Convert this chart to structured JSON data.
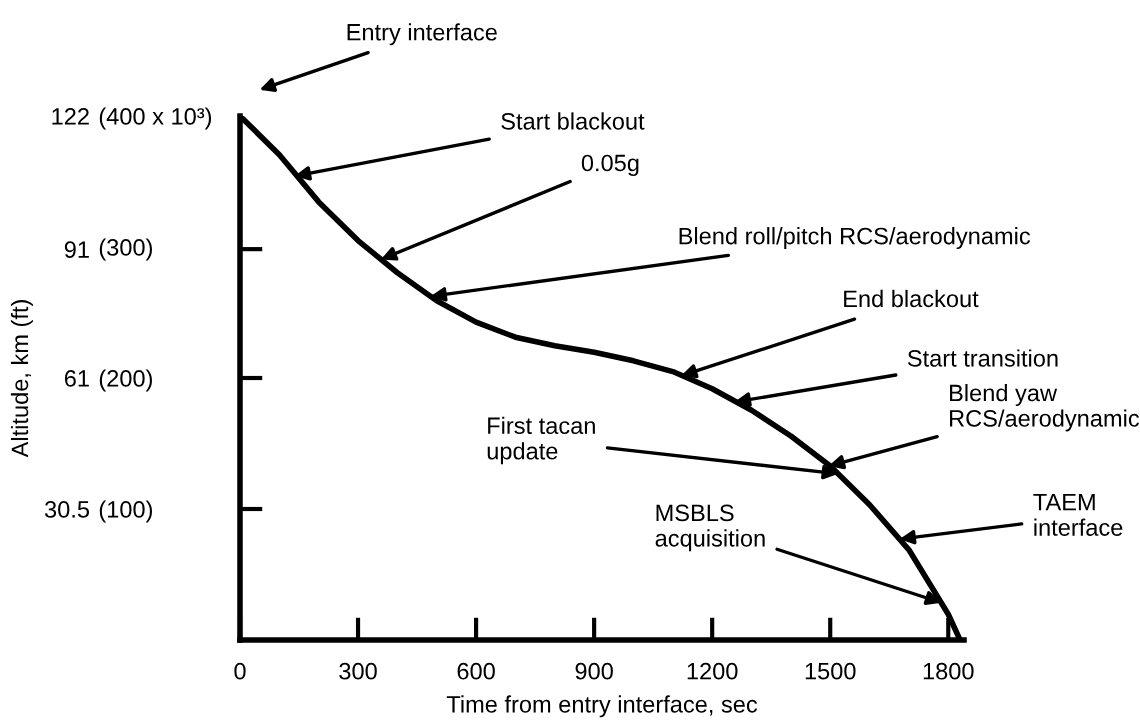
{
  "chart_data": {
    "type": "line",
    "xlabel": "Time from entry interface, sec",
    "ylabel": "Altitude, km (ft)",
    "x": [
      0,
      100,
      200,
      300,
      400,
      500,
      600,
      700,
      800,
      900,
      1000,
      1100,
      1200,
      1300,
      1400,
      1500,
      1600,
      1700,
      1750,
      1800,
      1830
    ],
    "series": [
      {
        "color": "#000000",
        "values": [
          122,
          113,
          102,
          93,
          85.5,
          79,
          74,
          70.5,
          68.5,
          67,
          65,
          62.5,
          58.5,
          53.5,
          47.5,
          40.5,
          31.5,
          21,
          13.5,
          6,
          0
        ]
      }
    ],
    "xlim": [
      0,
      1840
    ],
    "ylim": [
      0,
      122
    ],
    "xticks": [
      0,
      300,
      600,
      900,
      1200,
      1500,
      1800
    ],
    "yticks": [
      30.5,
      61,
      91,
      122
    ],
    "y2lim": [
      0,
      400
    ],
    "y2ticks": [
      {
        "value": 100,
        "label": "(100)"
      },
      {
        "value": 200,
        "label": "(200)"
      },
      {
        "value": 300,
        "label": "(300)"
      },
      {
        "value": 400,
        "label": "(400 x 10³)"
      }
    ],
    "grid": false,
    "legend": false,
    "marker": "none",
    "line_style": "solid",
    "annotations": [
      "Entry interface",
      {
        "text": "Start blackout",
        "x": 139,
        "y": 108
      },
      {
        "text": "0.05g",
        "x": 358,
        "y": 88.6
      },
      {
        "text": "Blend roll/pitch RCS/aerodynamic",
        "x": 484,
        "y": 80
      },
      {
        "text": "End blackout",
        "x": 1121,
        "y": 61.5
      },
      {
        "text": "Start transition",
        "x": 1257,
        "y": 55.4
      },
      {
        "text": "Blend yaw\nRCS/aerodynamic",
        "x": 1496,
        "y": 40.5
      },
      {
        "text": "First tacan\nupdate",
        "x": 1520,
        "y": 38.7
      },
      {
        "text": "TAEM\ninterface",
        "x": 1676,
        "y": 23.5
      },
      {
        "text": "MSBLS\nacquisition",
        "x": 1782,
        "y": 8.7
      }
    ]
  }
}
